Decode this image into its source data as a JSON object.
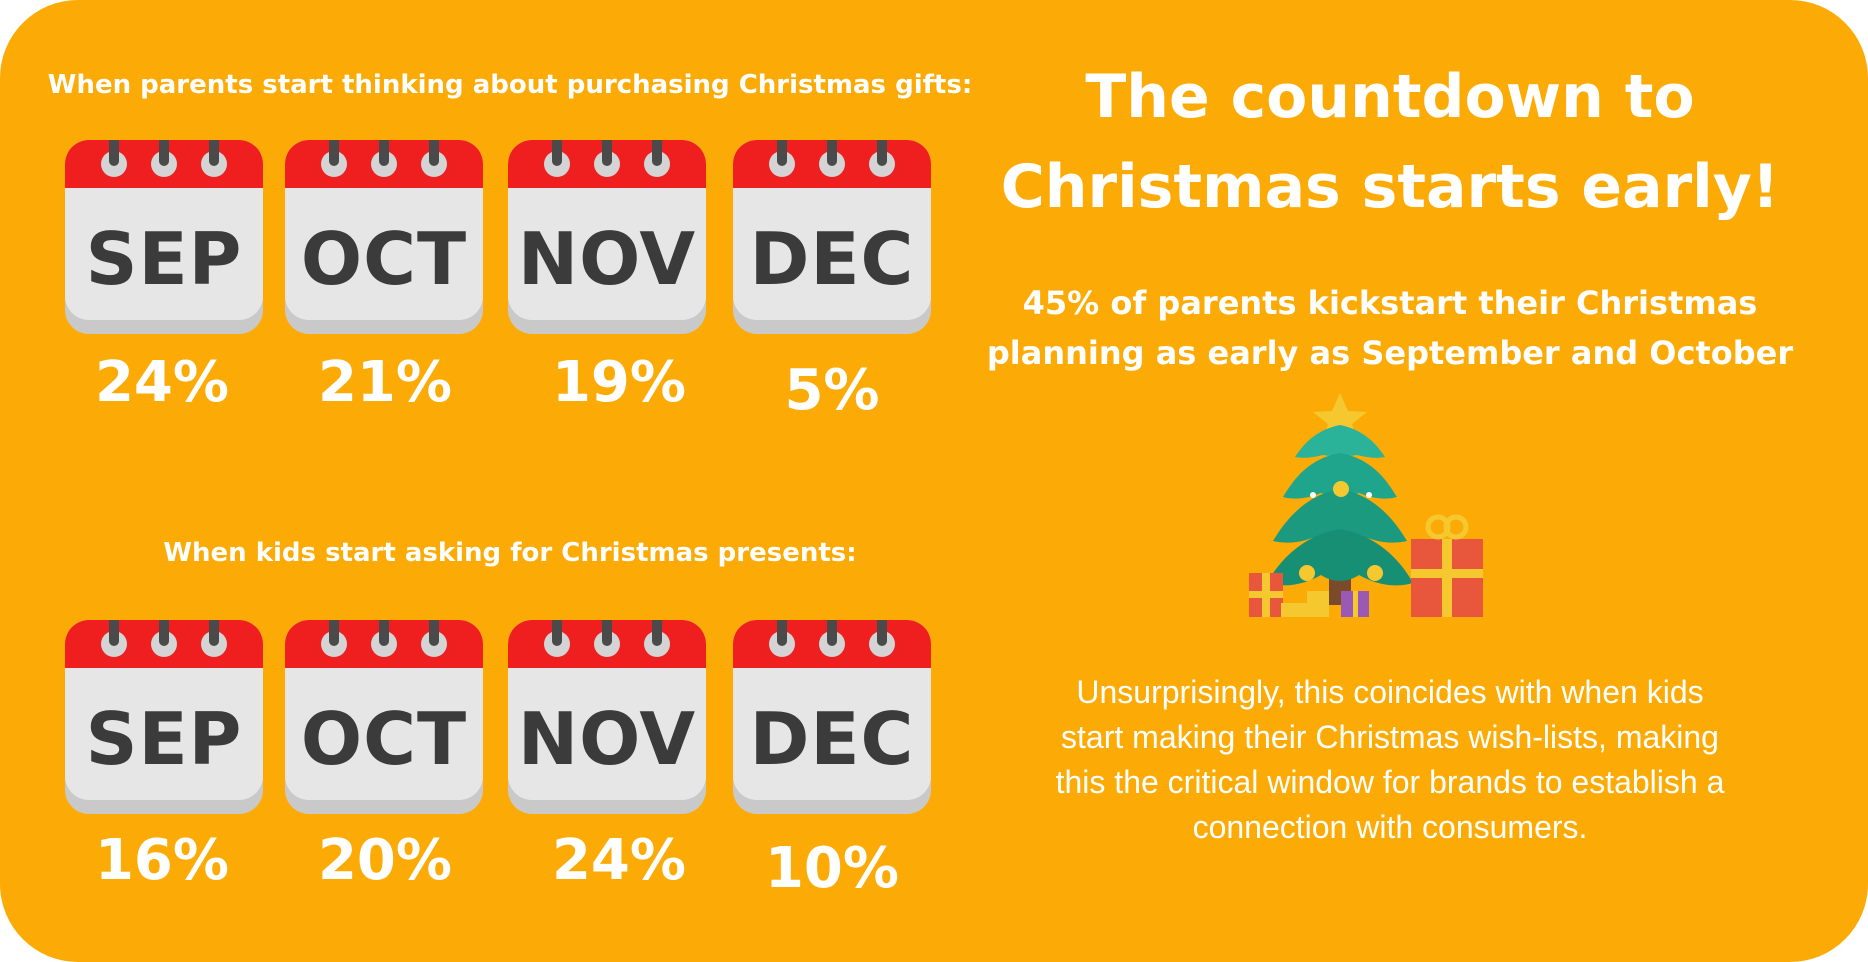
{
  "colors": {
    "background": "#fcab06",
    "calendar_header": "#ef1f1f",
    "calendar_body": "#e6e6e6",
    "calendar_shadow": "#c9c9c9",
    "ring": "#4a4a4a",
    "text_dark": "#3b3b3b",
    "text_light": "#ffffff"
  },
  "parents_section": {
    "heading": "When parents start thinking about purchasing Christmas gifts:",
    "months": [
      {
        "label": "SEP",
        "percent": "24%"
      },
      {
        "label": "OCT",
        "percent": "21%"
      },
      {
        "label": "NOV",
        "percent": "19%"
      },
      {
        "label": "DEC",
        "percent": "5%"
      }
    ]
  },
  "kids_section": {
    "heading": "When kids start asking for Christmas presents:",
    "months": [
      {
        "label": "SEP",
        "percent": "16%"
      },
      {
        "label": "OCT",
        "percent": "20%"
      },
      {
        "label": "NOV",
        "percent": "24%"
      },
      {
        "label": "DEC",
        "percent": "10%"
      }
    ]
  },
  "right_panel": {
    "title_lines": [
      "The countdown to",
      "Christmas starts early!"
    ],
    "subtitle_lines": [
      "45% of parents kickstart their Christmas",
      "planning as early as September and October"
    ],
    "illustration_icon": "christmas-tree-with-gifts-icon",
    "body_lines": [
      "Unsurprisingly, this coincides with when kids",
      "start making their Christmas wish-lists, making",
      "this the critical window for brands to establish a",
      "connection with consumers."
    ]
  }
}
